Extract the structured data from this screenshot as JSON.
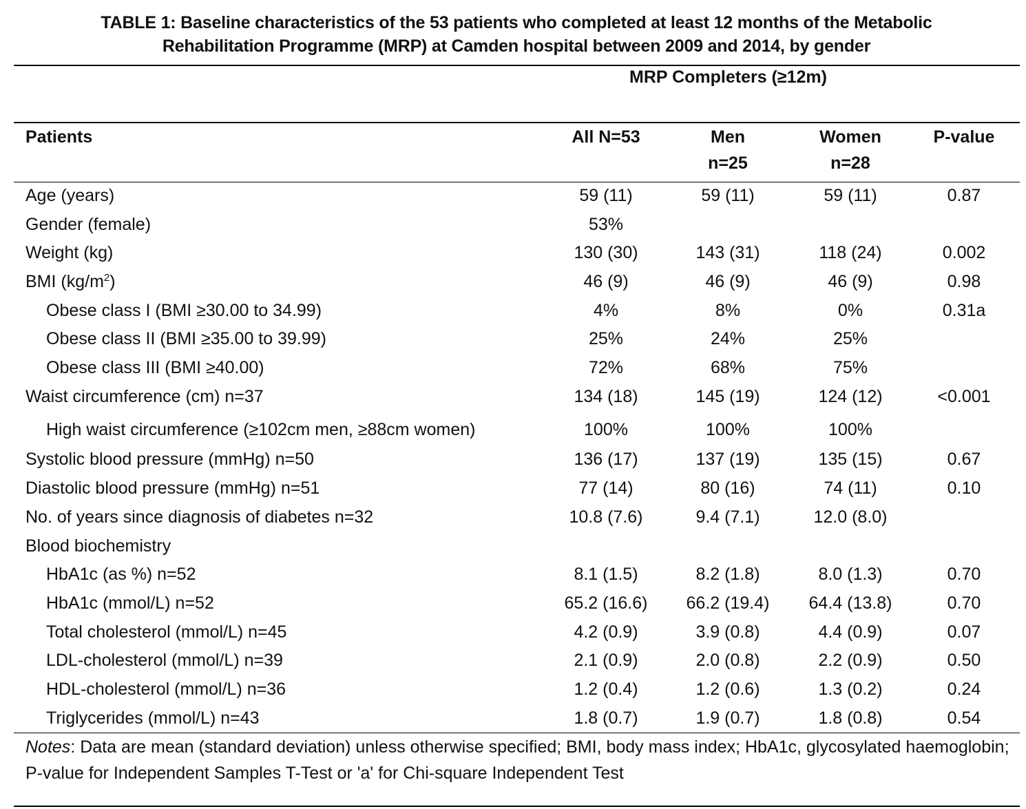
{
  "title": {
    "line1": "TABLE 1: Baseline characteristics of the 53 patients who completed at least 12 months of the Metabolic",
    "line2": "Rehabilitation Programme (MRP) at Camden hospital between 2009 and 2014, by gender"
  },
  "group_header": "MRP Completers (≥12m)",
  "columns": {
    "patients": "Patients",
    "all": "All N=53",
    "men_line1": "Men",
    "men_line2": "n=25",
    "women_line1": "Women",
    "women_line2": "n=28",
    "p_value": "P-value"
  },
  "rows": [
    {
      "label": "Age (years)",
      "all": "59 (11)",
      "men": "59 (11)",
      "women": "59 (11)",
      "p": "0.87"
    },
    {
      "label": "Gender (female)",
      "all": "53%",
      "men": "",
      "women": "",
      "p": ""
    },
    {
      "label": "Weight (kg)",
      "all": "130 (30)",
      "men": "143 (31)",
      "women": "118 (24)",
      "p": "0.002"
    },
    {
      "label": "BMI (kg/m",
      "label_sup": "2",
      "label_suffix": ")",
      "all": "46 (9)",
      "men": "46 (9)",
      "women": "46 (9)",
      "p": "0.98"
    },
    {
      "label": "Obese class I (BMI ≥30.00 to 34.99)",
      "all": "4%",
      "men": "8%",
      "women": "0%",
      "p": "0.31a"
    },
    {
      "label": "Obese class II (BMI ≥35.00 to 39.99)",
      "all": "25%",
      "men": "24%",
      "women": "25%",
      "p": ""
    },
    {
      "label": "Obese class III (BMI ≥40.00)",
      "all": "72%",
      "men": "68%",
      "women": "75%",
      "p": ""
    },
    {
      "label": "Waist circumference (cm) n=37",
      "all": "134 (18)",
      "men": "145 (19)",
      "women": "124 (12)",
      "p": "<0.001"
    },
    {
      "label": "High waist circumference (≥102cm men, ≥88cm women)",
      "all": "100%",
      "men": "100%",
      "women": "100%",
      "p": ""
    },
    {
      "label": "Systolic blood pressure (mmHg) n=50",
      "all": "136 (17)",
      "men": "137 (19)",
      "women": "135 (15)",
      "p": "0.67"
    },
    {
      "label": "Diastolic blood pressure (mmHg) n=51",
      "all": "77 (14)",
      "men": "80 (16)",
      "women": "74 (11)",
      "p": "0.10"
    },
    {
      "label": "No. of years since diagnosis of diabetes n=32",
      "all": "10.8 (7.6)",
      "men": "9.4 (7.1)",
      "women": "12.0 (8.0)",
      "p": ""
    },
    {
      "label": "Blood biochemistry",
      "all": "",
      "men": "",
      "women": "",
      "p": ""
    },
    {
      "label": "HbA1c (as %) n=52",
      "all": "8.1 (1.5)",
      "men": "8.2 (1.8)",
      "women": "8.0 (1.3)",
      "p": "0.70"
    },
    {
      "label": "HbA1c (mmol/L) n=52",
      "all": "65.2 (16.6)",
      "men": "66.2 (19.4)",
      "women": "64.4 (13.8)",
      "p": "0.70"
    },
    {
      "label": "Total cholesterol (mmol/L) n=45",
      "all": "4.2 (0.9)",
      "men": "3.9 (0.8)",
      "women": "4.4 (0.9)",
      "p": "0.07"
    },
    {
      "label": "LDL-cholesterol (mmol/L) n=39",
      "all": "2.1 (0.9)",
      "men": "2.0 (0.8)",
      "women": "2.2 (0.9)",
      "p": "0.50"
    },
    {
      "label": "HDL-cholesterol (mmol/L) n=36",
      "all": "1.2 (0.4)",
      "men": "1.2 (0.6)",
      "women": "1.3 (0.2)",
      "p": "0.24"
    },
    {
      "label": "Triglycerides (mmol/L) n=43",
      "all": "1.8 (0.7)",
      "men": "1.9 (0.7)",
      "women": "1.8 (0.8)",
      "p": "0.54"
    }
  ],
  "notes": {
    "lead": "Notes",
    "text": ": Data are mean (standard deviation) unless otherwise specified; BMI, body mass index; HbA1c, glycosylated haemoglobin; P-value for Independent Samples T-Test or 'a' for Chi-square Independent Test"
  }
}
